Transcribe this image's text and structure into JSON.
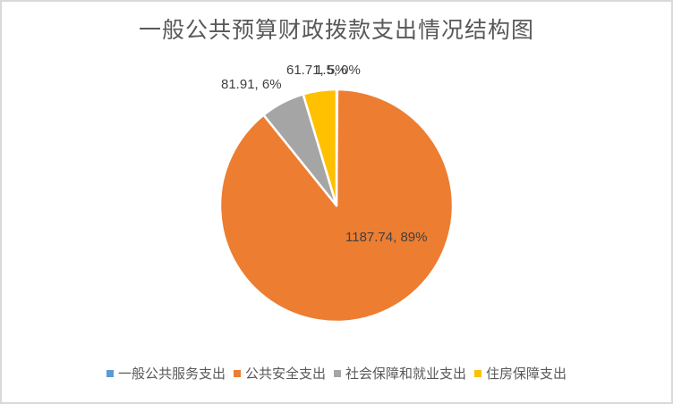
{
  "chart_data": {
    "type": "pie",
    "title": "一般公共预算财政拨款支出情况结构图",
    "categories": [
      "一般公共服务支出",
      "公共安全支出",
      "社会保障和就业支出",
      "住房保障支出"
    ],
    "values": [
      1.5,
      1187.74,
      81.91,
      61.71
    ],
    "percent_labels": [
      "0%",
      "89%",
      "6%",
      "5%"
    ],
    "data_labels": [
      "1.5, 0%",
      "1187.74, 89%",
      "81.91, 6%",
      "61.71, 5%"
    ],
    "colors": [
      "#5b9bd5",
      "#ed7d31",
      "#a5a5a5",
      "#ffc000"
    ],
    "start_angle_deg": 0,
    "direction": "clockwise",
    "legend_position": "bottom"
  }
}
